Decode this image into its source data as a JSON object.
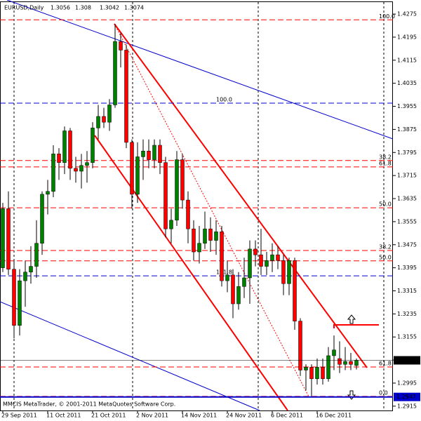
{
  "chart_data": {
    "type": "candlestick",
    "title": "EURUSD,Daily",
    "footer": "MMCIS MetaTrader, © 2001-2011 MetaQuotes Software Corp.",
    "up_color": "#008000",
    "down_color": "#ff0000",
    "wick_color": "#000000",
    "categories": [
      "29 Sep 2011",
      null,
      null,
      null,
      null,
      null,
      null,
      null,
      "11 Oct 2011",
      null,
      null,
      null,
      null,
      null,
      null,
      null,
      "21 Oct 2011",
      null,
      null,
      null,
      null,
      null,
      null,
      null,
      "2 Nov 2011",
      null,
      null,
      null,
      null,
      null,
      null,
      null,
      "14 Nov 2011",
      null,
      null,
      null,
      null,
      null,
      null,
      null,
      "24 Nov 2011",
      null,
      null,
      null,
      null,
      null,
      null,
      null,
      "6 Dec 2011",
      null,
      null,
      null,
      null,
      null,
      null,
      null,
      "16 Dec 2011",
      null,
      null,
      null,
      null,
      null,
      null,
      null
    ],
    "open": [
      1.3395,
      1.36,
      1.339,
      1.3195,
      1.335,
      1.338,
      1.34,
      1.348,
      1.365,
      1.366,
      1.379,
      1.376,
      1.387,
      1.374,
      1.373,
      1.375,
      1.376,
      1.388,
      1.392,
      1.39,
      1.396,
      1.418,
      1.415,
      1.383,
      1.365,
      1.378,
      1.38,
      1.377,
      1.382,
      1.376,
      1.353,
      1.356,
      1.377,
      1.363,
      1.353,
      1.345,
      1.348,
      1.353,
      1.349,
      1.352,
      1.335,
      1.337,
      1.327,
      1.333,
      1.336,
      1.346,
      1.344,
      1.34,
      1.342,
      1.344,
      1.342,
      1.334,
      1.342,
      1.321,
      1.304,
      1.305,
      1.301,
      1.305,
      1.301,
      1.309,
      1.308,
      1.306,
      1.307,
      1.3056
    ],
    "high": [
      1.362,
      1.366,
      1.342,
      1.339,
      1.342,
      1.347,
      1.356,
      1.366,
      1.37,
      1.382,
      1.381,
      1.3885,
      1.388,
      1.378,
      1.379,
      1.38,
      1.39,
      1.396,
      1.395,
      1.398,
      1.424,
      1.421,
      1.417,
      1.384,
      1.383,
      1.384,
      1.384,
      1.384,
      1.384,
      1.378,
      1.36,
      1.38,
      1.379,
      1.366,
      1.356,
      1.354,
      1.359,
      1.357,
      1.356,
      1.354,
      1.342,
      1.339,
      1.338,
      1.343,
      1.349,
      1.349,
      1.353,
      1.345,
      1.348,
      1.347,
      1.344,
      1.343,
      1.343,
      1.322,
      1.306,
      1.306,
      1.308,
      1.308,
      1.312,
      1.316,
      1.314,
      1.312,
      1.31,
      1.308
    ],
    "low": [
      1.338,
      1.337,
      1.315,
      1.316,
      1.326,
      1.334,
      1.336,
      1.344,
      1.358,
      1.364,
      1.37,
      1.372,
      1.37,
      1.369,
      1.367,
      1.369,
      1.374,
      1.384,
      1.388,
      1.387,
      1.395,
      1.409,
      1.381,
      1.36,
      1.362,
      1.37,
      1.374,
      1.374,
      1.372,
      1.35,
      1.348,
      1.354,
      1.36,
      1.348,
      1.342,
      1.341,
      1.346,
      1.345,
      1.344,
      1.333,
      1.331,
      1.322,
      1.325,
      1.329,
      1.327,
      1.34,
      1.337,
      1.337,
      1.338,
      1.339,
      1.33,
      1.33,
      1.318,
      1.302,
      1.297,
      1.295,
      1.299,
      1.299,
      1.3,
      1.304,
      1.303,
      1.304,
      1.304,
      1.3042
    ],
    "close": [
      1.36,
      1.339,
      1.3195,
      1.335,
      1.338,
      1.34,
      1.348,
      1.365,
      1.366,
      1.379,
      1.376,
      1.387,
      1.374,
      1.373,
      1.375,
      1.376,
      1.388,
      1.392,
      1.39,
      1.396,
      1.418,
      1.415,
      1.383,
      1.365,
      1.378,
      1.38,
      1.377,
      1.382,
      1.376,
      1.353,
      1.356,
      1.377,
      1.363,
      1.353,
      1.345,
      1.348,
      1.353,
      1.349,
      1.352,
      1.335,
      1.337,
      1.327,
      1.333,
      1.336,
      1.346,
      1.344,
      1.34,
      1.342,
      1.344,
      1.342,
      1.334,
      1.342,
      1.321,
      1.304,
      1.305,
      1.301,
      1.305,
      1.301,
      1.309,
      1.311,
      1.306,
      1.307,
      1.306,
      1.3074
    ],
    "ylim": [
      1.29,
      1.4319
    ],
    "yticks": [
      1.4275,
      1.4195,
      1.4115,
      1.4035,
      1.3955,
      1.3875,
      1.3795,
      1.3715,
      1.3635,
      1.3555,
      1.3475,
      1.3395,
      1.3315,
      1.3235,
      1.3155,
      1.3075,
      1.2995,
      1.2915
    ],
    "fib_levels": [
      {
        "label": "100.0",
        "price": 1.4255,
        "color": "#ff0000"
      },
      {
        "label": "38.2",
        "price": 1.3767,
        "color": "#ff0000"
      },
      {
        "label": "61.8",
        "price": 1.3745,
        "color": "#ff0000"
      },
      {
        "label": "50.0",
        "price": 1.3603,
        "color": "#ff0000"
      },
      {
        "label": "38.2",
        "price": 1.3455,
        "color": "#ff0000"
      },
      {
        "label": "50.0",
        "price": 1.3419,
        "color": "#ff0000"
      },
      {
        "label": "61.8",
        "price": 1.3051,
        "color": "#ff0000"
      },
      {
        "label": "0.0",
        "price": 1.2949,
        "color": "#ff0000"
      },
      {
        "label": "100.0",
        "price": 1.3966,
        "color": "#0000cc"
      },
      {
        "label": "161.8",
        "price": 1.3367,
        "color": "#0000cc"
      }
    ],
    "price_markers": [
      {
        "value": 1.3074,
        "color": "#000000"
      },
      {
        "value": 1.2947,
        "color": "#0000cc"
      }
    ]
  }
}
